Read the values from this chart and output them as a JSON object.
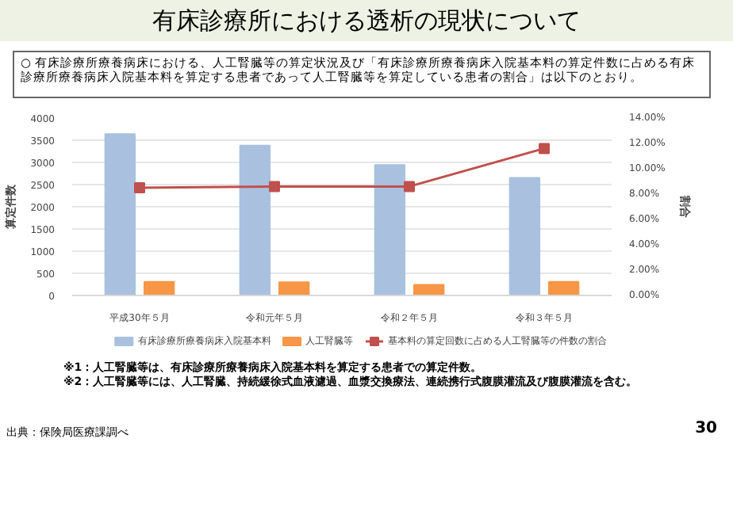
{
  "chart_data": {
    "type": "bar",
    "title": "有床診療所における透析の現状について",
    "subtitle": "○ 有床診療所療養病床における、人工腎臓等の算定状況及び「有床診療所療養病床入院基本料の算定件数に占める有床診療所療養病床入院基本料を算定する患者であって人工腎臓等を算定している患者の割合」は以下のとおり。",
    "categories": [
      "平成30年５月",
      "令和元年５月",
      "令和２年５月",
      "令和３年５月"
    ],
    "series": [
      {
        "name": "有床診療所療養病床入院基本料",
        "color": "#a9c1df",
        "values": [
          3640,
          3380,
          2940,
          2650
        ]
      },
      {
        "name": "人工腎臓等",
        "color": "#f79646",
        "values": [
          310,
          300,
          240,
          310
        ]
      },
      {
        "name": "基本料の算定回数に占める人工腎臓等の件数の割合",
        "color": "#c0504d",
        "type": "line",
        "axis": "y2",
        "marker": "square",
        "values": [
          8.5,
          8.6,
          8.6,
          11.6
        ]
      }
    ],
    "ylabel": "算定件数",
    "y2label": "割合",
    "ylim": [
      0,
      4000
    ],
    "yticks": [
      0,
      500,
      1000,
      1500,
      2000,
      2500,
      3000,
      3500,
      4000
    ],
    "y2lim": [
      0,
      14
    ],
    "y2ticks": [
      {
        "value": 0,
        "label": "0.00%"
      },
      {
        "value": 2,
        "label": "2.00%"
      },
      {
        "value": 4,
        "label": "4.00%"
      },
      {
        "value": 6,
        "label": "6.00%"
      },
      {
        "value": 8,
        "label": "8.00%"
      },
      {
        "value": 10,
        "label": "10.00%"
      },
      {
        "value": 12,
        "label": "12.00%"
      },
      {
        "value": 14,
        "label": "14.00%"
      }
    ],
    "grid": "y",
    "legend": "bottom",
    "annotations": [
      "※1：人工腎臓等は、有床診療所療養病床入院基本料を算定する患者での算定件数。",
      "※2：人工腎臓等には、人工腎臓、持続緩徐式血液濾過、血漿交換療法、連続携行式腹膜灌流及び腹膜灌流を含む。",
      "出典：保険局医療課調べ",
      "30"
    ]
  }
}
